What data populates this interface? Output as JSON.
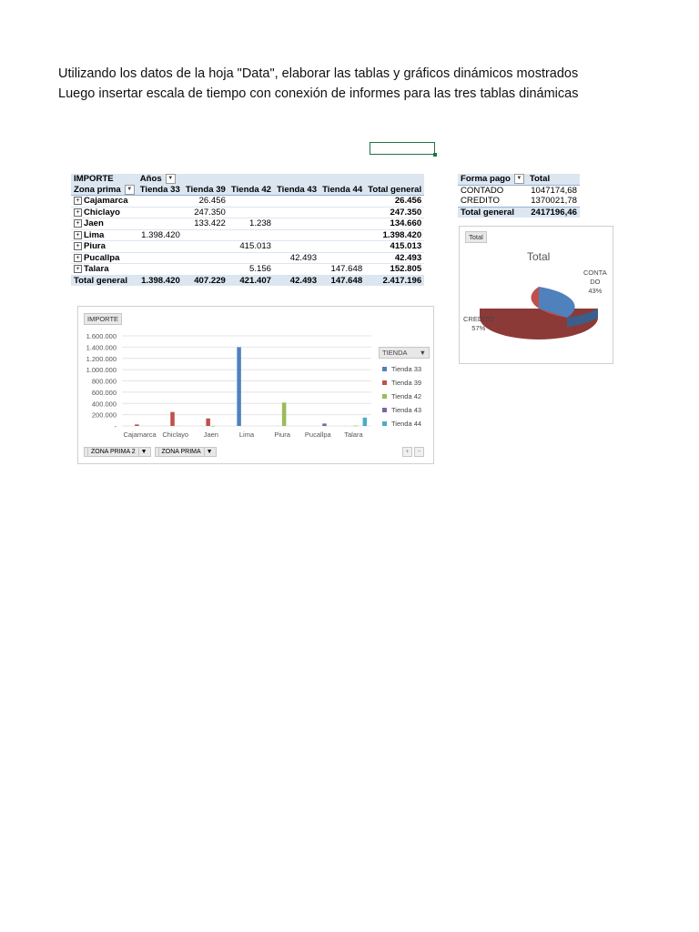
{
  "instructions": {
    "line1": "Utilizando los datos de la hoja \"Data\", elaborar las tablas y gráficos dinámicos mostrados",
    "line2": "Luego insertar escala de tiempo con conexión de informes para las tres tablas dinámicas"
  },
  "pivot1": {
    "header1": [
      "IMPORTE",
      "Años"
    ],
    "header2": [
      "Zona prima",
      "Tienda 33",
      "Tienda 39",
      "Tienda 42",
      "Tienda 43",
      "Tienda 44",
      "Total general"
    ],
    "rows": [
      {
        "label": "Cajamarca",
        "cells": [
          "",
          "26.456",
          "",
          "",
          "",
          "26.456"
        ]
      },
      {
        "label": "Chiclayo",
        "cells": [
          "",
          "247.350",
          "",
          "",
          "",
          "247.350"
        ]
      },
      {
        "label": "Jaen",
        "cells": [
          "",
          "133.422",
          "1.238",
          "",
          "",
          "134.660"
        ]
      },
      {
        "label": "Lima",
        "cells": [
          "1.398.420",
          "",
          "",
          "",
          "",
          "1.398.420"
        ]
      },
      {
        "label": "Piura",
        "cells": [
          "",
          "",
          "415.013",
          "",
          "",
          "415.013"
        ]
      },
      {
        "label": "Pucallpa",
        "cells": [
          "",
          "",
          "",
          "42.493",
          "",
          "42.493"
        ]
      },
      {
        "label": "Talara",
        "cells": [
          "",
          "",
          "5.156",
          "",
          "147.648",
          "152.805"
        ]
      }
    ],
    "total": {
      "label": "Total general",
      "cells": [
        "1.398.420",
        "407.229",
        "421.407",
        "42.493",
        "147.648",
        "2.417.196"
      ]
    }
  },
  "pivot2": {
    "header": [
      "Forma pago",
      "Total"
    ],
    "rows": [
      {
        "label": "CONTADO",
        "value": "1047174,68"
      },
      {
        "label": "CREDITO",
        "value": "1370021,78"
      }
    ],
    "total": {
      "label": "Total general",
      "value": "2417196,46"
    }
  },
  "pie": {
    "chip": "Total",
    "title": "Total",
    "contado_label_1": "CONTA",
    "contado_label_2": "DO",
    "contado_pct": "43%",
    "credito_label": "CREDITO",
    "credito_pct": "57%",
    "colors": {
      "contado": "#4f81bd",
      "credito": "#c0504d"
    }
  },
  "bar": {
    "field_chip": "IMPORTE",
    "legend_title": "TIENDA",
    "bottom_buttons": [
      "ZONA PRIMA 2",
      "ZONA PRIMA"
    ]
  },
  "chart_data": {
    "type": "bar",
    "categories": [
      "Cajamarca",
      "Chiclayo",
      "Jaen",
      "Lima",
      "Piura",
      "Pucallpa",
      "Talara"
    ],
    "series": [
      {
        "name": "Tienda 33",
        "color": "#4f81bd",
        "values": [
          0,
          0,
          0,
          1398420,
          0,
          0,
          0
        ]
      },
      {
        "name": "Tienda 39",
        "color": "#c0504d",
        "values": [
          26456,
          247350,
          133422,
          0,
          0,
          0,
          0
        ]
      },
      {
        "name": "Tienda 42",
        "color": "#9bbb59",
        "values": [
          0,
          0,
          1238,
          0,
          415013,
          0,
          5156
        ]
      },
      {
        "name": "Tienda 43",
        "color": "#8064a2",
        "values": [
          0,
          0,
          0,
          0,
          0,
          42493,
          0
        ]
      },
      {
        "name": "Tienda 44",
        "color": "#4bacc6",
        "values": [
          0,
          0,
          0,
          0,
          0,
          0,
          147648
        ]
      }
    ],
    "yticks": [
      "-",
      "200.000",
      "400.000",
      "600.000",
      "800.000",
      "1.000.000",
      "1.200.000",
      "1.400.000",
      "1.600.000"
    ],
    "ylim": [
      0,
      1600000
    ],
    "grid": true,
    "legend": "right"
  }
}
